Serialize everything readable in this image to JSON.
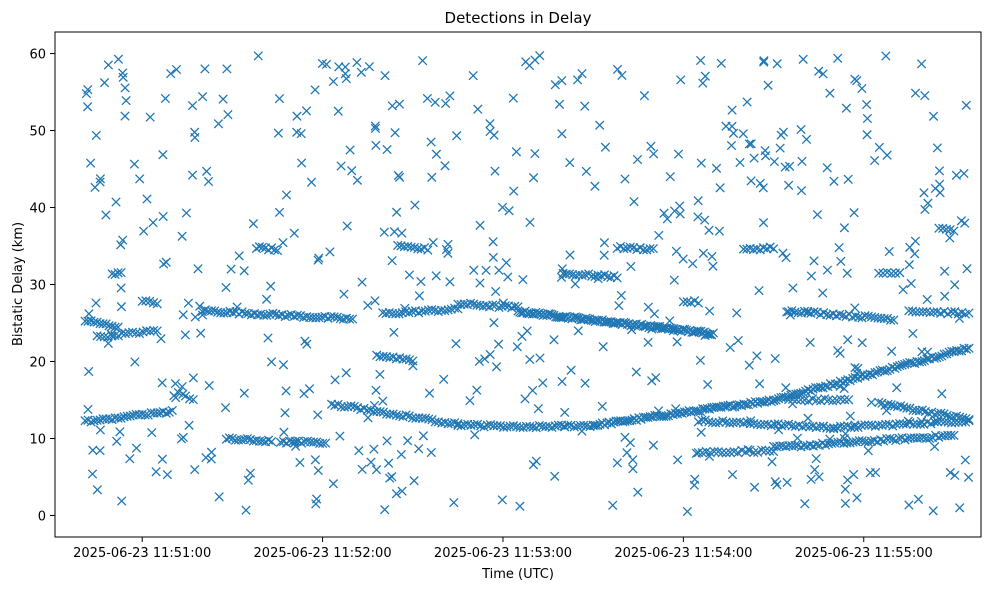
{
  "chart_data": {
    "type": "scatter",
    "title": "Detections in Delay",
    "xlabel": "Time (UTC)",
    "ylabel": "Bistatic Delay (km)",
    "marker": "x",
    "color": "#1f77b4",
    "grid": false,
    "xlim": [
      "2025-06-23 11:50:31",
      "2025-06-23 11:55:39"
    ],
    "ylim": [
      -2.8,
      62.8
    ],
    "x_ticks": [
      "2025-06-23 11:51:00",
      "2025-06-23 11:52:00",
      "2025-06-23 11:53:00",
      "2025-06-23 11:54:00",
      "2025-06-23 11:55:00"
    ],
    "y_ticks": [
      0,
      10,
      20,
      30,
      40,
      50,
      60
    ],
    "tracks": [
      {
        "from": [
          "2025-06-23 11:50:41",
          12.2
        ],
        "to": [
          "2025-06-23 11:51:10",
          13.5
        ],
        "points": 30
      },
      {
        "from": [
          "2025-06-23 11:51:28",
          10.0
        ],
        "to": [
          "2025-06-23 11:51:43",
          9.6
        ],
        "points": 16
      },
      {
        "from": [
          "2025-06-23 11:51:46",
          9.5
        ],
        "to": [
          "2025-06-23 11:52:01",
          9.5
        ],
        "points": 16
      },
      {
        "from": [
          "2025-06-23 11:52:03",
          14.5
        ],
        "to": [
          "2025-06-23 11:52:45",
          11.8
        ],
        "points": 40
      },
      {
        "from": [
          "2025-06-23 11:52:45",
          11.8
        ],
        "to": [
          "2025-06-23 11:53:10",
          11.4
        ],
        "points": 24
      },
      {
        "from": [
          "2025-06-23 11:53:10",
          11.5
        ],
        "to": [
          "2025-06-23 11:53:30",
          11.7
        ],
        "points": 20
      },
      {
        "from": [
          "2025-06-23 11:53:30",
          11.7
        ],
        "to": [
          "2025-06-23 11:54:30",
          15.0
        ],
        "points": 80
      },
      {
        "from": [
          "2025-06-23 11:54:30",
          15.0
        ],
        "to": [
          "2025-06-23 11:55:35",
          21.8
        ],
        "points": 80
      },
      {
        "from": [
          "2025-06-23 11:54:05",
          12.3
        ],
        "to": [
          "2025-06-23 11:54:50",
          11.4
        ],
        "points": 40
      },
      {
        "from": [
          "2025-06-23 11:54:50",
          11.4
        ],
        "to": [
          "2025-06-23 11:55:35",
          12.3
        ],
        "points": 40
      },
      {
        "from": [
          "2025-06-23 11:54:05",
          8.2
        ],
        "to": [
          "2025-06-23 11:54:30",
          8.4
        ],
        "points": 20
      },
      {
        "from": [
          "2025-06-23 11:54:30",
          8.8
        ],
        "to": [
          "2025-06-23 11:55:30",
          10.4
        ],
        "points": 60
      },
      {
        "from": [
          "2025-06-23 11:55:05",
          14.6
        ],
        "to": [
          "2025-06-23 11:55:35",
          12.5
        ],
        "points": 30
      },
      {
        "from": [
          "2025-06-23 11:54:35",
          15.0
        ],
        "to": [
          "2025-06-23 11:54:55",
          15.0
        ],
        "points": 16
      },
      {
        "from": [
          "2025-06-23 11:50:41",
          25.3
        ],
        "to": [
          "2025-06-23 11:50:52",
          24.5
        ],
        "points": 12
      },
      {
        "from": [
          "2025-06-23 11:50:45",
          23.2
        ],
        "to": [
          "2025-06-23 11:51:05",
          24.0
        ],
        "points": 18
      },
      {
        "from": [
          "2025-06-23 11:51:20",
          26.6
        ],
        "to": [
          "2025-06-23 11:52:10",
          25.5
        ],
        "points": 50
      },
      {
        "from": [
          "2025-06-23 11:52:20",
          26.2
        ],
        "to": [
          "2025-06-23 11:52:45",
          26.8
        ],
        "points": 24
      },
      {
        "from": [
          "2025-06-23 11:52:45",
          27.5
        ],
        "to": [
          "2025-06-23 11:53:05",
          27.0
        ],
        "points": 20
      },
      {
        "from": [
          "2025-06-23 11:53:05",
          26.5
        ],
        "to": [
          "2025-06-23 11:54:10",
          23.6
        ],
        "points": 110
      },
      {
        "from": [
          "2025-06-23 11:54:35",
          26.6
        ],
        "to": [
          "2025-06-23 11:55:10",
          25.5
        ],
        "points": 34
      },
      {
        "from": [
          "2025-06-23 11:55:15",
          26.6
        ],
        "to": [
          "2025-06-23 11:55:35",
          26.2
        ],
        "points": 18
      },
      {
        "from": [
          "2025-06-23 11:50:50",
          31.5
        ],
        "to": [
          "2025-06-23 11:50:53",
          31.4
        ],
        "points": 4
      },
      {
        "from": [
          "2025-06-23 11:51:00",
          27.8
        ],
        "to": [
          "2025-06-23 11:51:05",
          27.6
        ],
        "points": 5
      },
      {
        "from": [
          "2025-06-23 11:51:38",
          34.8
        ],
        "to": [
          "2025-06-23 11:51:45",
          34.5
        ],
        "points": 8
      },
      {
        "from": [
          "2025-06-23 11:52:25",
          34.9
        ],
        "to": [
          "2025-06-23 11:52:35",
          34.6
        ],
        "points": 10
      },
      {
        "from": [
          "2025-06-23 11:52:18",
          20.8
        ],
        "to": [
          "2025-06-23 11:52:30",
          20.2
        ],
        "points": 12
      },
      {
        "from": [
          "2025-06-23 11:53:20",
          31.4
        ],
        "to": [
          "2025-06-23 11:53:38",
          31.0
        ],
        "points": 18
      },
      {
        "from": [
          "2025-06-23 11:53:38",
          34.8
        ],
        "to": [
          "2025-06-23 11:53:50",
          34.6
        ],
        "points": 12
      },
      {
        "from": [
          "2025-06-23 11:54:00",
          27.8
        ],
        "to": [
          "2025-06-23 11:54:05",
          27.7
        ],
        "points": 5
      },
      {
        "from": [
          "2025-06-23 11:54:20",
          34.5
        ],
        "to": [
          "2025-06-23 11:54:30",
          34.8
        ],
        "points": 10
      },
      {
        "from": [
          "2025-06-23 11:55:05",
          31.4
        ],
        "to": [
          "2025-06-23 11:55:12",
          31.5
        ],
        "points": 6
      },
      {
        "from": [
          "2025-06-23 11:55:25",
          37.2
        ],
        "to": [
          "2025-06-23 11:55:30",
          37.0
        ],
        "points": 5
      }
    ],
    "scattered_points": {
      "count": 560,
      "x_range": [
        "2025-06-23 11:50:41",
        "2025-06-23 11:55:35"
      ],
      "y_range": [
        0.5,
        60
      ]
    }
  }
}
